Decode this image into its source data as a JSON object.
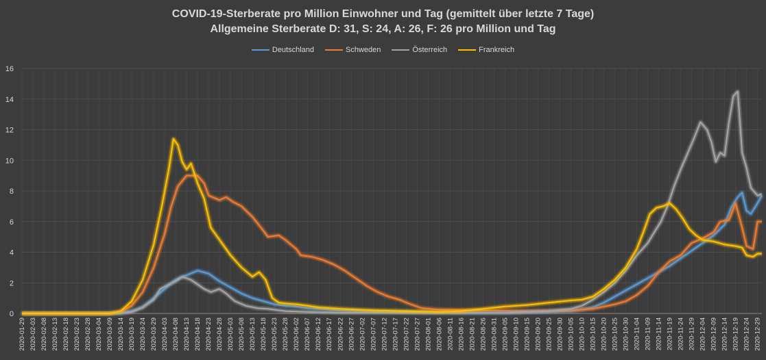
{
  "chart_data": {
    "type": "line",
    "title": "COVID-19-Sterberate pro Million Einwohner und Tag (gemittelt über letzte 7 Tage)",
    "subtitle": "Allgemeine Sterberate D: 31, S: 24, A: 26, F: 26 pro Million und Tag",
    "xlabel": "",
    "ylabel": "",
    "ylim": [
      0,
      16
    ],
    "yticks": [
      0,
      2,
      4,
      6,
      8,
      10,
      12,
      14,
      16
    ],
    "grid": true,
    "legend_position": "top",
    "start_date": "2020-01-29",
    "end_date": "2020-12-31",
    "x_tick_labels": [
      "2020-01-29",
      "2020-02-03",
      "2020-02-08",
      "2020-02-13",
      "2020-02-18",
      "2020-02-23",
      "2020-02-28",
      "2020-03-04",
      "2020-03-09",
      "2020-03-14",
      "2020-03-19",
      "2020-03-24",
      "2020-03-29",
      "2020-04-03",
      "2020-04-08",
      "2020-04-13",
      "2020-04-18",
      "2020-04-23",
      "2020-04-28",
      "2020-05-03",
      "2020-05-08",
      "2020-05-13",
      "2020-05-18",
      "2020-05-23",
      "2020-05-28",
      "2020-06-02",
      "2020-06-07",
      "2020-06-12",
      "2020-06-17",
      "2020-06-22",
      "2020-06-27",
      "2020-07-02",
      "2020-07-07",
      "2020-07-12",
      "2020-07-17",
      "2020-07-22",
      "2020-07-27",
      "2020-08-01",
      "2020-08-06",
      "2020-08-11",
      "2020-08-16",
      "2020-08-21",
      "2020-08-26",
      "2020-08-31",
      "2020-09-05",
      "2020-09-10",
      "2020-09-15",
      "2020-09-20",
      "2020-09-25",
      "2020-09-30",
      "2020-10-05",
      "2020-10-10",
      "2020-10-15",
      "2020-10-20",
      "2020-10-25",
      "2020-10-30",
      "2020-11-04",
      "2020-11-09",
      "2020-11-14",
      "2020-11-19",
      "2020-11-24",
      "2020-11-29",
      "2020-12-04",
      "2020-12-09",
      "2020-12-14",
      "2020-12-19",
      "2020-12-24",
      "2020-12-29"
    ],
    "series": [
      {
        "name": "Deutschland",
        "color": "#5b9bd5",
        "points": [
          [
            "2020-01-29",
            0
          ],
          [
            "2020-03-09",
            0
          ],
          [
            "2020-03-19",
            0.15
          ],
          [
            "2020-03-24",
            0.4
          ],
          [
            "2020-03-29",
            1.0
          ],
          [
            "2020-04-03",
            1.6
          ],
          [
            "2020-04-08",
            2.2
          ],
          [
            "2020-04-13",
            2.5
          ],
          [
            "2020-04-18",
            2.8
          ],
          [
            "2020-04-23",
            2.6
          ],
          [
            "2020-04-28",
            2.1
          ],
          [
            "2020-05-03",
            1.7
          ],
          [
            "2020-05-08",
            1.3
          ],
          [
            "2020-05-13",
            1.0
          ],
          [
            "2020-05-18",
            0.8
          ],
          [
            "2020-05-23",
            0.6
          ],
          [
            "2020-05-28",
            0.5
          ],
          [
            "2020-06-02",
            0.45
          ],
          [
            "2020-06-07",
            0.35
          ],
          [
            "2020-06-12",
            0.3
          ],
          [
            "2020-06-17",
            0.25
          ],
          [
            "2020-06-22",
            0.2
          ],
          [
            "2020-06-27",
            0.18
          ],
          [
            "2020-07-02",
            0.15
          ],
          [
            "2020-07-12",
            0.12
          ],
          [
            "2020-07-27",
            0.08
          ],
          [
            "2020-08-16",
            0.06
          ],
          [
            "2020-09-05",
            0.06
          ],
          [
            "2020-09-25",
            0.1
          ],
          [
            "2020-10-05",
            0.15
          ],
          [
            "2020-10-10",
            0.25
          ],
          [
            "2020-10-15",
            0.4
          ],
          [
            "2020-10-20",
            0.7
          ],
          [
            "2020-10-25",
            1.1
          ],
          [
            "2020-10-30",
            1.5
          ],
          [
            "2020-11-04",
            1.9
          ],
          [
            "2020-11-09",
            2.3
          ],
          [
            "2020-11-14",
            2.7
          ],
          [
            "2020-11-19",
            3.1
          ],
          [
            "2020-11-24",
            3.6
          ],
          [
            "2020-11-29",
            4.1
          ],
          [
            "2020-12-04",
            4.6
          ],
          [
            "2020-12-09",
            5.1
          ],
          [
            "2020-12-14",
            5.8
          ],
          [
            "2020-12-17",
            6.9
          ],
          [
            "2020-12-20",
            7.6
          ],
          [
            "2020-12-22",
            7.9
          ],
          [
            "2020-12-24",
            6.7
          ],
          [
            "2020-12-26",
            6.5
          ],
          [
            "2020-12-29",
            7.2
          ],
          [
            "2020-12-31",
            7.7
          ]
        ]
      },
      {
        "name": "Schweden",
        "color": "#ed7d31",
        "points": [
          [
            "2020-01-29",
            0
          ],
          [
            "2020-03-09",
            0
          ],
          [
            "2020-03-14",
            0.1
          ],
          [
            "2020-03-19",
            0.5
          ],
          [
            "2020-03-24",
            1.4
          ],
          [
            "2020-03-29",
            3.0
          ],
          [
            "2020-04-03",
            5.2
          ],
          [
            "2020-04-06",
            7.0
          ],
          [
            "2020-04-09",
            8.3
          ],
          [
            "2020-04-13",
            9.0
          ],
          [
            "2020-04-18",
            9.0
          ],
          [
            "2020-04-21",
            8.5
          ],
          [
            "2020-04-23",
            7.7
          ],
          [
            "2020-04-28",
            7.4
          ],
          [
            "2020-05-01",
            7.6
          ],
          [
            "2020-05-04",
            7.3
          ],
          [
            "2020-05-08",
            7.0
          ],
          [
            "2020-05-13",
            6.3
          ],
          [
            "2020-05-18",
            5.4
          ],
          [
            "2020-05-20",
            5.0
          ],
          [
            "2020-05-25",
            5.1
          ],
          [
            "2020-05-28",
            4.8
          ],
          [
            "2020-06-02",
            4.2
          ],
          [
            "2020-06-04",
            3.8
          ],
          [
            "2020-06-09",
            3.7
          ],
          [
            "2020-06-14",
            3.5
          ],
          [
            "2020-06-19",
            3.2
          ],
          [
            "2020-06-24",
            2.8
          ],
          [
            "2020-06-29",
            2.3
          ],
          [
            "2020-07-04",
            1.8
          ],
          [
            "2020-07-09",
            1.4
          ],
          [
            "2020-07-14",
            1.1
          ],
          [
            "2020-07-19",
            0.9
          ],
          [
            "2020-07-24",
            0.6
          ],
          [
            "2020-07-29",
            0.35
          ],
          [
            "2020-08-06",
            0.25
          ],
          [
            "2020-08-26",
            0.2
          ],
          [
            "2020-09-15",
            0.15
          ],
          [
            "2020-10-05",
            0.2
          ],
          [
            "2020-10-15",
            0.3
          ],
          [
            "2020-10-25",
            0.6
          ],
          [
            "2020-10-30",
            0.8
          ],
          [
            "2020-11-04",
            1.2
          ],
          [
            "2020-11-09",
            1.8
          ],
          [
            "2020-11-14",
            2.7
          ],
          [
            "2020-11-19",
            3.4
          ],
          [
            "2020-11-24",
            3.8
          ],
          [
            "2020-11-29",
            4.6
          ],
          [
            "2020-12-04",
            4.9
          ],
          [
            "2020-12-09",
            5.3
          ],
          [
            "2020-12-12",
            6.0
          ],
          [
            "2020-12-16",
            6.1
          ],
          [
            "2020-12-19",
            7.2
          ],
          [
            "2020-12-22",
            5.6
          ],
          [
            "2020-12-24",
            4.4
          ],
          [
            "2020-12-27",
            4.2
          ],
          [
            "2020-12-29",
            6.0
          ],
          [
            "2020-12-31",
            6.0
          ]
        ]
      },
      {
        "name": "Österreich",
        "color": "#a5a5a5",
        "points": [
          [
            "2020-01-29",
            0
          ],
          [
            "2020-03-14",
            0
          ],
          [
            "2020-03-19",
            0.1
          ],
          [
            "2020-03-24",
            0.4
          ],
          [
            "2020-03-29",
            0.9
          ],
          [
            "2020-04-01",
            1.6
          ],
          [
            "2020-04-05",
            1.9
          ],
          [
            "2020-04-08",
            2.1
          ],
          [
            "2020-04-11",
            2.4
          ],
          [
            "2020-04-15",
            2.2
          ],
          [
            "2020-04-18",
            1.9
          ],
          [
            "2020-04-21",
            1.6
          ],
          [
            "2020-04-24",
            1.4
          ],
          [
            "2020-04-28",
            1.6
          ],
          [
            "2020-05-01",
            1.3
          ],
          [
            "2020-05-05",
            0.8
          ],
          [
            "2020-05-10",
            0.5
          ],
          [
            "2020-05-15",
            0.35
          ],
          [
            "2020-05-20",
            0.3
          ],
          [
            "2020-05-28",
            0.15
          ],
          [
            "2020-06-07",
            0.1
          ],
          [
            "2020-06-22",
            0.05
          ],
          [
            "2020-07-12",
            0.05
          ],
          [
            "2020-08-11",
            0.04
          ],
          [
            "2020-09-05",
            0.05
          ],
          [
            "2020-09-25",
            0.15
          ],
          [
            "2020-10-05",
            0.3
          ],
          [
            "2020-10-10",
            0.5
          ],
          [
            "2020-10-15",
            0.9
          ],
          [
            "2020-10-20",
            1.4
          ],
          [
            "2020-10-25",
            2.0
          ],
          [
            "2020-10-30",
            2.8
          ],
          [
            "2020-11-04",
            3.8
          ],
          [
            "2020-11-09",
            4.6
          ],
          [
            "2020-11-12",
            5.3
          ],
          [
            "2020-11-15",
            6.0
          ],
          [
            "2020-11-18",
            7.0
          ],
          [
            "2020-11-21",
            8.3
          ],
          [
            "2020-11-24",
            9.4
          ],
          [
            "2020-11-27",
            10.4
          ],
          [
            "2020-11-30",
            11.4
          ],
          [
            "2020-12-03",
            12.5
          ],
          [
            "2020-12-06",
            12.0
          ],
          [
            "2020-12-08",
            11.2
          ],
          [
            "2020-12-10",
            9.9
          ],
          [
            "2020-12-12",
            10.5
          ],
          [
            "2020-12-14",
            10.3
          ],
          [
            "2020-12-16",
            12.5
          ],
          [
            "2020-12-18",
            14.2
          ],
          [
            "2020-12-20",
            14.5
          ],
          [
            "2020-12-22",
            10.5
          ],
          [
            "2020-12-24",
            9.5
          ],
          [
            "2020-12-26",
            8.2
          ],
          [
            "2020-12-29",
            7.7
          ],
          [
            "2020-12-31",
            7.8
          ]
        ]
      },
      {
        "name": "Frankreich",
        "color": "#ffc000",
        "points": [
          [
            "2020-01-29",
            0
          ],
          [
            "2020-03-09",
            0
          ],
          [
            "2020-03-14",
            0.15
          ],
          [
            "2020-03-19",
            0.8
          ],
          [
            "2020-03-24",
            2.2
          ],
          [
            "2020-03-29",
            4.5
          ],
          [
            "2020-04-02",
            7.2
          ],
          [
            "2020-04-05",
            9.5
          ],
          [
            "2020-04-07",
            11.4
          ],
          [
            "2020-04-09",
            11.0
          ],
          [
            "2020-04-11",
            9.9
          ],
          [
            "2020-04-13",
            9.4
          ],
          [
            "2020-04-15",
            9.8
          ],
          [
            "2020-04-18",
            8.5
          ],
          [
            "2020-04-21",
            7.5
          ],
          [
            "2020-04-24",
            5.6
          ],
          [
            "2020-04-28",
            4.8
          ],
          [
            "2020-05-03",
            3.8
          ],
          [
            "2020-05-08",
            3.0
          ],
          [
            "2020-05-13",
            2.4
          ],
          [
            "2020-05-16",
            2.7
          ],
          [
            "2020-05-19",
            2.2
          ],
          [
            "2020-05-22",
            1.0
          ],
          [
            "2020-05-25",
            0.7
          ],
          [
            "2020-05-28",
            0.65
          ],
          [
            "2020-06-02",
            0.6
          ],
          [
            "2020-06-07",
            0.5
          ],
          [
            "2020-06-12",
            0.4
          ],
          [
            "2020-06-22",
            0.3
          ],
          [
            "2020-07-07",
            0.2
          ],
          [
            "2020-07-22",
            0.15
          ],
          [
            "2020-08-06",
            0.1
          ],
          [
            "2020-08-16",
            0.15
          ],
          [
            "2020-08-26",
            0.3
          ],
          [
            "2020-09-05",
            0.45
          ],
          [
            "2020-09-15",
            0.55
          ],
          [
            "2020-09-25",
            0.7
          ],
          [
            "2020-10-05",
            0.85
          ],
          [
            "2020-10-10",
            0.9
          ],
          [
            "2020-10-15",
            1.1
          ],
          [
            "2020-10-20",
            1.6
          ],
          [
            "2020-10-25",
            2.2
          ],
          [
            "2020-10-30",
            3.0
          ],
          [
            "2020-11-04",
            4.2
          ],
          [
            "2020-11-07",
            5.3
          ],
          [
            "2020-11-10",
            6.5
          ],
          [
            "2020-11-13",
            6.9
          ],
          [
            "2020-11-16",
            7.0
          ],
          [
            "2020-11-19",
            7.2
          ],
          [
            "2020-11-22",
            6.8
          ],
          [
            "2020-11-25",
            6.2
          ],
          [
            "2020-11-28",
            5.5
          ],
          [
            "2020-12-01",
            5.1
          ],
          [
            "2020-12-04",
            4.8
          ],
          [
            "2020-12-09",
            4.7
          ],
          [
            "2020-12-14",
            4.5
          ],
          [
            "2020-12-19",
            4.4
          ],
          [
            "2020-12-22",
            4.3
          ],
          [
            "2020-12-24",
            3.8
          ],
          [
            "2020-12-27",
            3.7
          ],
          [
            "2020-12-29",
            3.9
          ],
          [
            "2020-12-31",
            3.9
          ]
        ]
      }
    ]
  }
}
